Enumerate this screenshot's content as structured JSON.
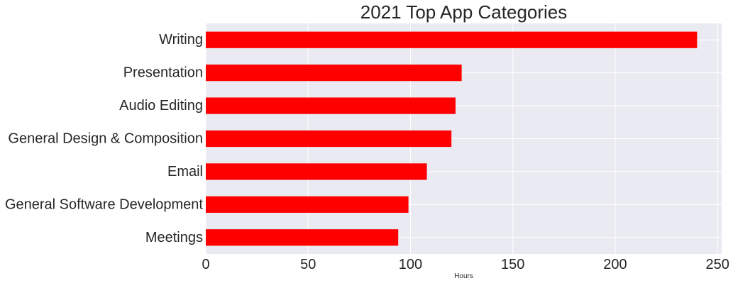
{
  "chart_data": {
    "type": "bar",
    "orientation": "horizontal",
    "title": "2021 Top App Categories",
    "xlabel": "Hours",
    "ylabel": "",
    "categories": [
      "Meetings",
      "General Software Development",
      "Email",
      "General Design & Composition",
      "Audio Editing",
      "Presentation",
      "Writing"
    ],
    "values": [
      94,
      99,
      108,
      120,
      122,
      125,
      240
    ],
    "xlim": [
      0,
      252
    ],
    "xticks": [
      0,
      50,
      100,
      150,
      200,
      250
    ],
    "grid": true,
    "legend": "none",
    "bar_color": "#ff0000",
    "plot_background": "#eaeaf2",
    "grid_color": "#ffffff"
  }
}
